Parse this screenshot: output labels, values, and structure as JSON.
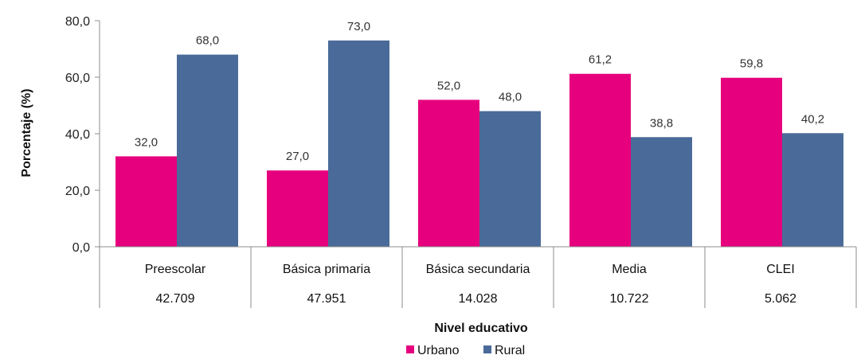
{
  "chart_data": {
    "type": "bar",
    "categories": [
      "Preescolar",
      "Básica primaria",
      "Básica secundaria",
      "Media",
      "CLEI"
    ],
    "sublabels": [
      "42.709",
      "47.951",
      "14.028",
      "10.722",
      "5.062"
    ],
    "series": [
      {
        "name": "Urbano",
        "values": [
          32.0,
          27.0,
          52.0,
          61.2,
          59.8
        ],
        "color": "#e6007e"
      },
      {
        "name": "Rural",
        "values": [
          68.0,
          73.0,
          48.0,
          38.8,
          40.2
        ],
        "color": "#4a6b99"
      }
    ],
    "value_labels": {
      "Urbano": [
        "32,0",
        "27,0",
        "52,0",
        "61,2",
        "59,8"
      ],
      "Rural": [
        "68,0",
        "73,0",
        "48,0",
        "38,8",
        "40,2"
      ]
    },
    "xlabel": "Nivel educativo",
    "ylabel": "Porcentaje (%)",
    "ylim": [
      0,
      80
    ],
    "yticks": [
      0,
      20,
      40,
      60,
      80
    ],
    "ytick_labels": [
      "0,0",
      "20,0",
      "40,0",
      "60,0",
      "80,0"
    ],
    "grid": false,
    "legend_position": "bottom"
  }
}
